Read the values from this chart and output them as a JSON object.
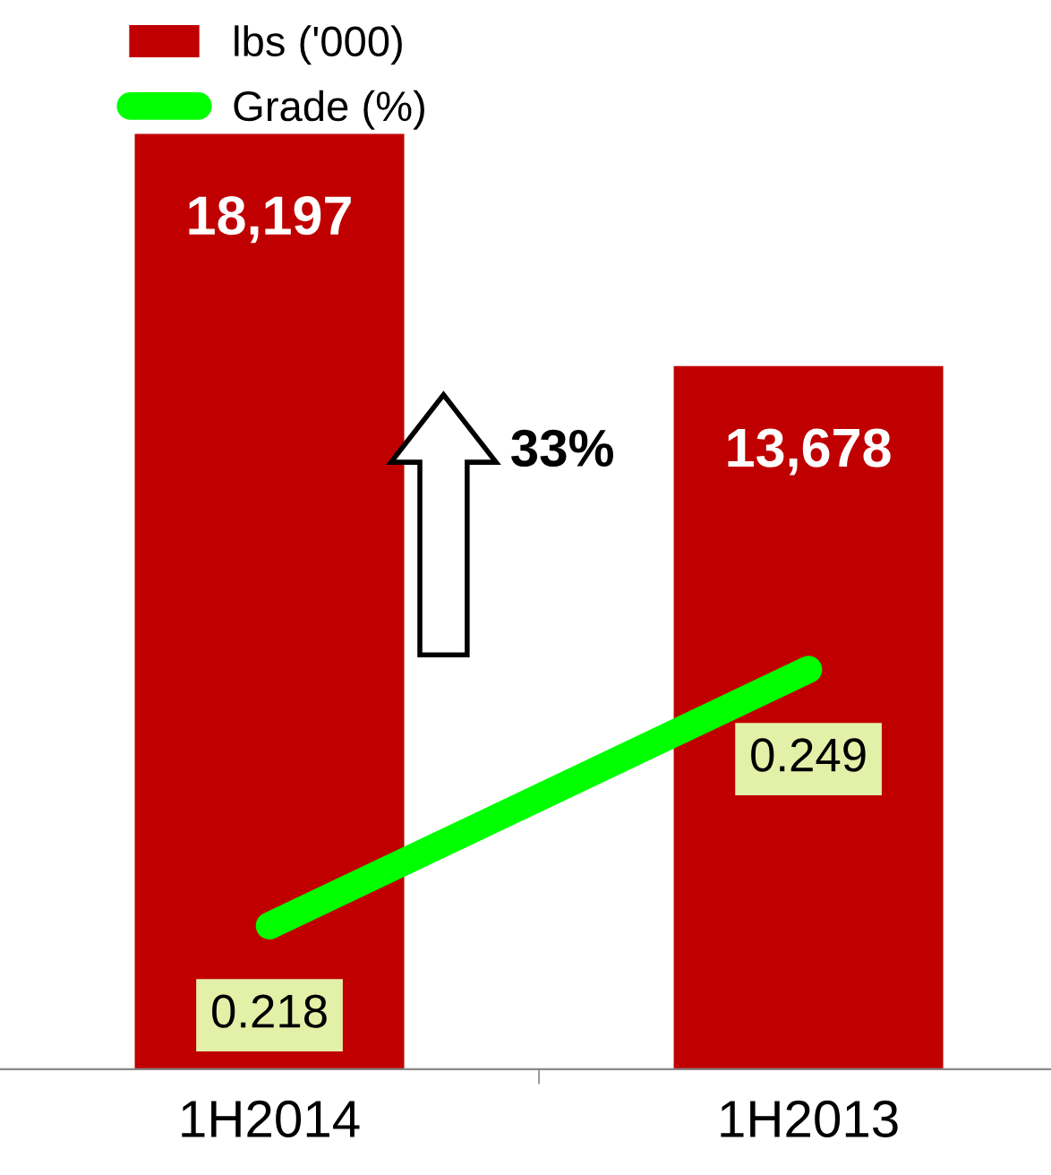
{
  "chart_data": {
    "type": "bar",
    "categories": [
      "1H2014",
      "1H2013"
    ],
    "series": [
      {
        "name": "lbs ('000)",
        "color": "#c00000",
        "values": [
          18197,
          13678
        ],
        "value_labels": [
          "18,197",
          "13,678"
        ]
      },
      {
        "name": "Grade (%)",
        "type": "line",
        "axis": "y2",
        "color": "#00ff00",
        "values": [
          0.218,
          0.249
        ],
        "value_labels": [
          "0.218",
          "0.249"
        ]
      }
    ],
    "annotations": [
      "33%"
    ],
    "legend": "top left",
    "grid": false,
    "tick_labels": "x"
  }
}
